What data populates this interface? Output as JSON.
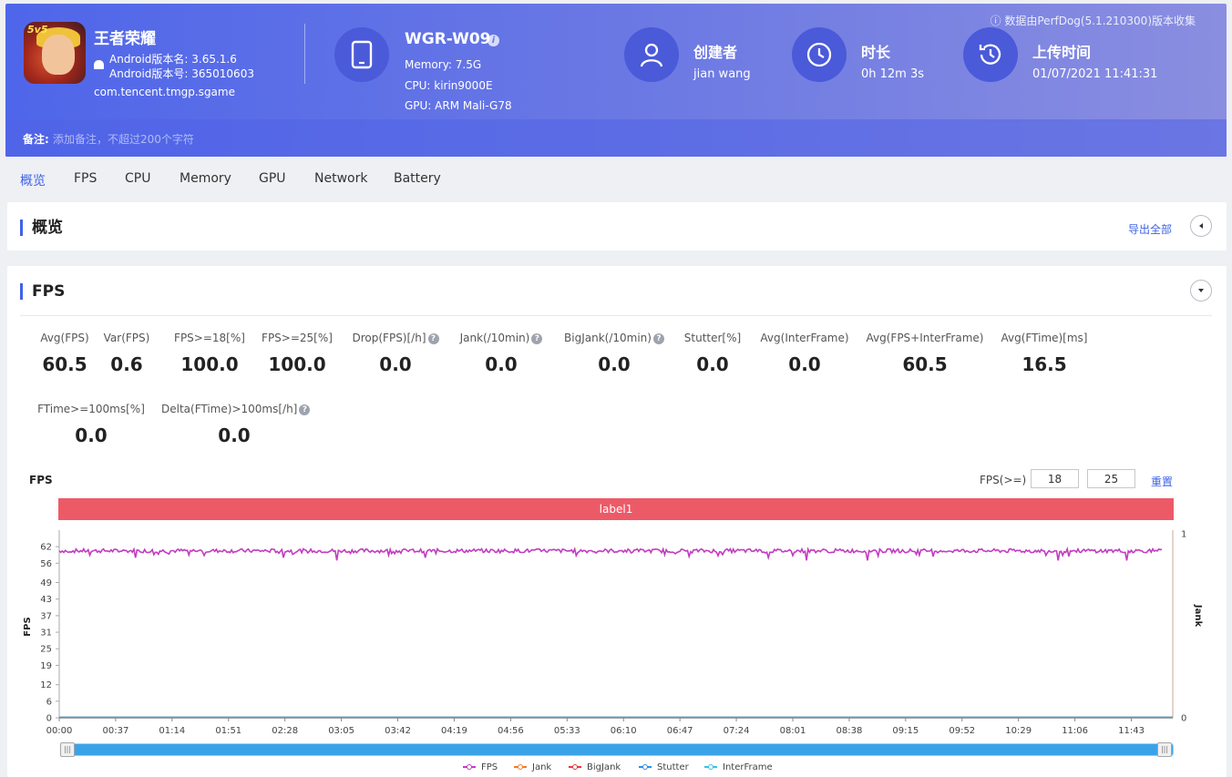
{
  "header": {
    "app_name": "王者荣耀",
    "app_icon_tag": "5v5",
    "android_version_name": "Android版本名: 3.65.1.6",
    "android_version_code": "Android版本号: 365010603",
    "package": "com.tencent.tmgp.sgame",
    "device_name": "WGR-W09",
    "memory": "Memory: 7.5G",
    "cpu": "CPU: kirin9000E",
    "gpu": "GPU: ARM Mali-G78",
    "creator_title": "创建者",
    "creator_value": "jian wang",
    "duration_title": "时长",
    "duration_value": "0h 12m 3s",
    "upload_title": "上传时间",
    "upload_value": "01/07/2021 11:41:31",
    "collected_by": "ⓘ 数据由PerfDog(5.1.210300)版本收集",
    "note_label": "备注:",
    "note_placeholder": "添加备注，不超过200个字符"
  },
  "tabs": [
    "概览",
    "FPS",
    "CPU",
    "Memory",
    "GPU",
    "Network",
    "Battery"
  ],
  "overview": {
    "title": "概览",
    "export_label": "导出全部"
  },
  "fps_section": {
    "title": "FPS",
    "stats_row1": [
      {
        "label": "Avg(FPS)",
        "value": "60.5",
        "help": false
      },
      {
        "label": "Var(FPS)",
        "value": "0.6",
        "help": false
      },
      {
        "label": "FPS>=18[%]",
        "value": "100.0",
        "help": false
      },
      {
        "label": "FPS>=25[%]",
        "value": "100.0",
        "help": false
      },
      {
        "label": "Drop(FPS)[/h]",
        "value": "0.0",
        "help": true
      },
      {
        "label": "Jank(/10min)",
        "value": "0.0",
        "help": true
      },
      {
        "label": "BigJank(/10min)",
        "value": "0.0",
        "help": true
      },
      {
        "label": "Stutter[%]",
        "value": "0.0",
        "help": false
      },
      {
        "label": "Avg(InterFrame)",
        "value": "0.0",
        "help": false
      },
      {
        "label": "Avg(FPS+InterFrame)",
        "value": "60.5",
        "help": false
      },
      {
        "label": "Avg(FTime)[ms]",
        "value": "16.5",
        "help": false
      }
    ],
    "stats_row2": [
      {
        "label": "FTime>=100ms[%]",
        "value": "0.0",
        "help": false
      },
      {
        "label": "Delta(FTime)>100ms[/h]",
        "value": "0.0",
        "help": true
      }
    ],
    "chart_title": "FPS",
    "threshold_label": "FPS(>=)",
    "threshold_1": "18",
    "threshold_2": "25",
    "reset_label": "重置",
    "band_label": "label1",
    "slider_handle_glyph": "|||"
  },
  "chart_data": {
    "type": "line",
    "ylabel": "FPS",
    "y2label": "Jank",
    "y_ticks": [
      0,
      6,
      12,
      19,
      25,
      31,
      37,
      43,
      49,
      56,
      62
    ],
    "y2_ticks": [
      0,
      1
    ],
    "ylim": [
      0,
      66
    ],
    "x_ticks": [
      "00:00",
      "00:37",
      "01:14",
      "01:51",
      "02:28",
      "03:05",
      "03:42",
      "04:19",
      "04:56",
      "05:33",
      "06:10",
      "06:47",
      "07:24",
      "08:01",
      "08:38",
      "09:15",
      "09:52",
      "10:29",
      "11:06",
      "11:43"
    ],
    "duration_seconds": 723,
    "series": [
      {
        "name": "FPS",
        "color": "#c23cc0",
        "baseline": 60.5,
        "dips": [
          [
            50,
            58
          ],
          [
            147,
            58
          ],
          [
            182,
            57
          ],
          [
            240,
            58
          ],
          [
            465,
            58
          ],
          [
            490,
            57
          ],
          [
            530,
            57
          ],
          [
            655,
            57
          ],
          [
            700,
            57
          ]
        ]
      },
      {
        "name": "Jank",
        "color": "#f07c2a",
        "values_constant": 0
      },
      {
        "name": "BigJank",
        "color": "#e23c3c",
        "values_constant": 0
      },
      {
        "name": "Stutter",
        "color": "#2e8fe6",
        "values_constant": 0
      },
      {
        "name": "InterFrame",
        "color": "#33c4e8",
        "values_constant": 0
      }
    ],
    "legend_position": "bottom-center"
  }
}
